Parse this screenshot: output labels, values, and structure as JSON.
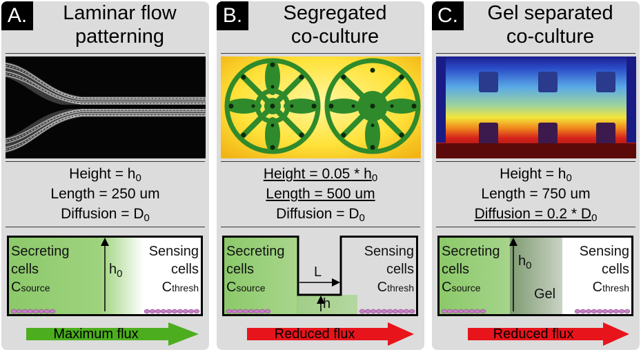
{
  "panels": [
    {
      "letter": "A.",
      "title_lines": [
        "Laminar flow",
        "patterning"
      ],
      "params": [
        "Height = h",
        "Length = 250 um",
        "Diffusion = D"
      ],
      "left_label": [
        "Secreting",
        "cells",
        "C",
        "source"
      ],
      "right_label": [
        "Sensing",
        "cells",
        "C",
        "thresh"
      ],
      "h_label": "h",
      "subscript_zero": "0",
      "flux_label": "Maximum flux",
      "flux_color": "#4cae1e"
    },
    {
      "letter": "B.",
      "title_lines": [
        "Segregated",
        "co-culture"
      ],
      "params": [
        "Height = 0.05 * h",
        "Length = 500 um",
        "Diffusion = D"
      ],
      "left_label": [
        "Secreting",
        "cells",
        "C",
        "source"
      ],
      "right_label": [
        "Sensing",
        "cells",
        "C",
        "thresh"
      ],
      "L_label": "L",
      "h_label": "h",
      "subscript_zero": "0",
      "flux_label": "Reduced flux",
      "flux_color": "#e8141c"
    },
    {
      "letter": "C.",
      "title_lines": [
        "Gel separated",
        "co-culture"
      ],
      "params": [
        "Height = h",
        "Length = 750 um",
        "Diffusion = 0.2 * D"
      ],
      "left_label": [
        "Secreting",
        "cells",
        "C",
        "source"
      ],
      "right_label": [
        "Sensing",
        "cells",
        "C",
        "thresh"
      ],
      "h_label": "h",
      "gel_label": "Gel",
      "subscript_zero": "0",
      "flux_label": "Reduced flux",
      "flux_color": "#e8141c"
    }
  ]
}
